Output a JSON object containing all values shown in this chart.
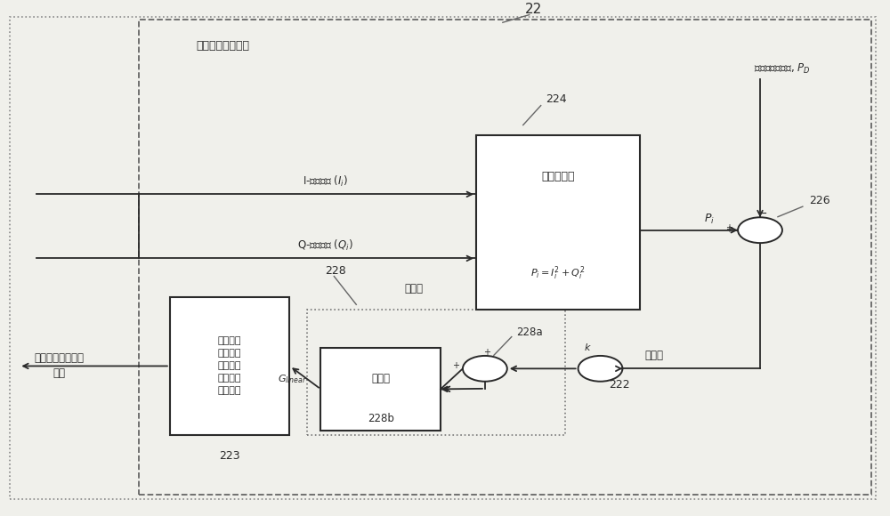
{
  "bg_color": "#f0f0eb",
  "fig_w": 10.0,
  "fig_h": 5.8,
  "lc": "#2a2a2a",
  "lw": 1.3,
  "title_22": "22",
  "inner_label": "自动增益控制装置",
  "pd_label": "接收訊號之功率, $P_D$",
  "i_label": "I-信通訊號 ($I_i$)",
  "q_label": "Q-信通訊號 ($Q_i$)",
  "digital_label": "數字自动增益控制\n訊號",
  "power_det_line1": "功率偵測器",
  "power_det_line2": "$P_i = I_i^2 + Q_i^2$",
  "lna_text": "低噪聲放\n大器與可\n變增益放\n大器控制\n映像單元",
  "delay_text": "延遲器",
  "mult_text": "乘法器",
  "accum_text": "累加器",
  "id_224": "224",
  "id_226": "226",
  "id_222": "222",
  "id_228": "228",
  "id_228a": "228a",
  "id_228b": "228b",
  "id_223": "223",
  "g_linear": "$G_{linear}$",
  "k_text": "k",
  "pi_text": "$P_i$",
  "plus": "+",
  "minus": "−"
}
